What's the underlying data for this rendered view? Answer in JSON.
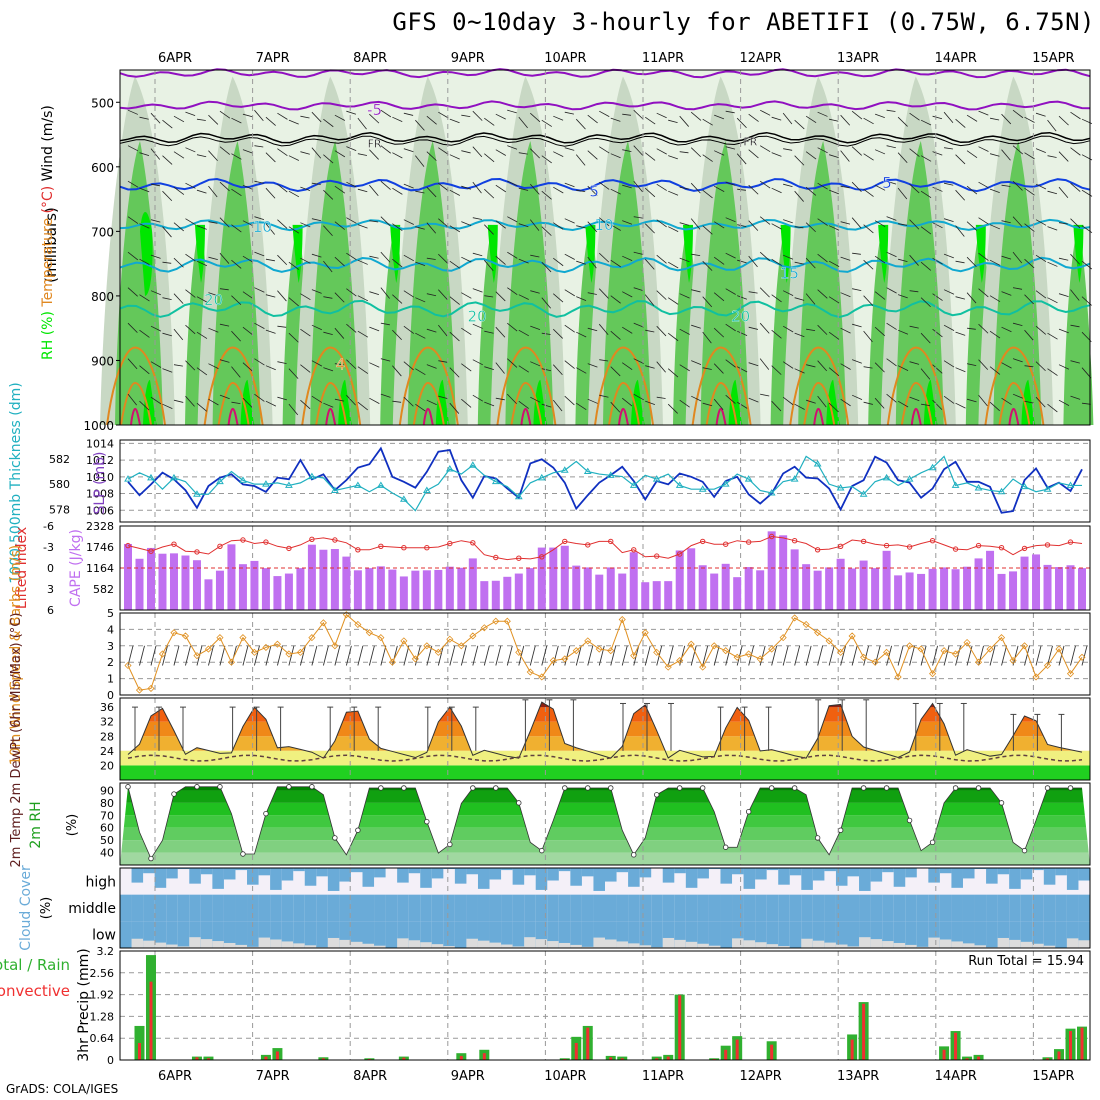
{
  "title": "GFS 0~10day 3-hourly for ABETIFI (0.75W, 6.75N)",
  "credit": "GrADS: COLA/IGES",
  "date_labels": [
    "6APR",
    "7APR",
    "8APR",
    "9APR",
    "10APR",
    "11APR",
    "12APR",
    "13APR",
    "14APR",
    "15APR"
  ],
  "colors": {
    "rh_light": "#e8f2e4",
    "rh_mid": "#c8d8c4",
    "rh_green": "#64c85a",
    "rh_bright": "#00e600",
    "temp_purple": "#9010c0",
    "temp_blue": "#1040e0",
    "temp_cyan": "#10a8d0",
    "temp_teal": "#10c0a0",
    "temp_orange": "#e08820",
    "slp": "#1030c0",
    "thick": "#20b0c0",
    "cape": "#c070f0",
    "li": "#e03030",
    "wind10": "#e09020",
    "rain_total": "#30b030",
    "rain_conv": "#f03030",
    "cloud": "#6aabd8"
  },
  "chart_data": [
    {
      "type": "heatmap",
      "name": "upper-air",
      "ylabel_wind": "Wind (m/s)",
      "ylabel_temp": "Temperature (°C)",
      "ylabel_rh": "RH (%)",
      "ylabel_pres": "(millibars)",
      "y_ticks": [
        500,
        600,
        700,
        800,
        900,
        1000
      ],
      "ylim": [
        1000,
        450
      ],
      "contour_labels": [
        {
          "text": "-5",
          "day": 2.25,
          "p": 512
        },
        {
          "text": "FR",
          "day": 2.25,
          "p": 562
        },
        {
          "text": "FR",
          "day": 6.1,
          "p": 559
        },
        {
          "text": "5",
          "day": 4.5,
          "p": 638
        },
        {
          "text": "5",
          "day": 7.5,
          "p": 625
        },
        {
          "text": "10",
          "day": 1.1,
          "p": 693
        },
        {
          "text": "10",
          "day": 4.6,
          "p": 690
        },
        {
          "text": "15",
          "day": 6.5,
          "p": 765
        },
        {
          "text": "20",
          "day": 0.6,
          "p": 806
        },
        {
          "text": "20",
          "day": 3.3,
          "p": 832
        },
        {
          "text": "20",
          "day": 6.0,
          "p": 832
        },
        {
          "text": "4",
          "day": 1.9,
          "p": 906
        }
      ]
    },
    {
      "type": "line",
      "name": "slp-thickness",
      "ylabel_left": "1000-500mb Thickness (dm)",
      "ylabel_right": "SLP (mb)",
      "left_ticks": [
        578,
        580,
        582
      ],
      "right_ticks": [
        1006,
        1008,
        1010,
        1012,
        1014
      ],
      "ylim_slp": [
        1004.6,
        1014.4
      ],
      "slp": [
        1009.4,
        1007.8,
        1009.1,
        1010.5,
        1009.7,
        1008.4,
        1006.3,
        1008.9,
        1009.9,
        1010.3,
        1009.1,
        1008.9,
        1008.2,
        1009.9,
        1009.7,
        1012.0,
        1009.7,
        1010.3,
        1008.4,
        1009.6,
        1011.1,
        1011.5,
        1013.4,
        1010.0,
        1009.4,
        1008.7,
        1010.6,
        1013.0,
        1013.2,
        1009.6,
        1007.5,
        1010.1,
        1009.8,
        1008.6,
        1007.5,
        1011.6,
        1012.1,
        1011.1,
        1009.3,
        1006.2,
        1007.8,
        1009.3,
        1010.2,
        1011.2,
        1009.5,
        1007.3,
        1009.5,
        1009.1,
        1010.4,
        1010.0,
        1009.4,
        1007.6,
        1009.5,
        1010.0,
        1007.9,
        1006.8,
        1008.0,
        1010.4,
        1011.2,
        1009.9,
        1009.8,
        1008.6,
        1006.1,
        1008.9,
        1009.6,
        1012.4,
        1011.7,
        1009.6,
        1009.3,
        1007.5,
        1008.6,
        1010.9,
        1011.8,
        1009.4,
        1009.4,
        1008.8,
        1005.7,
        1005.9,
        1009.6,
        1011.0,
        1008.7,
        1009.3,
        1008.3,
        1010.9
      ],
      "thickness": [
        580.4,
        580.9,
        580.5,
        579.6,
        580.5,
        580.2,
        579.2,
        579.2,
        580.2,
        581.0,
        580.3,
        580.0,
        580.0,
        580.1,
        579.9,
        580.1,
        580.6,
        580.5,
        579.5,
        579.7,
        579.9,
        579.4,
        579.9,
        579.3,
        578.8,
        577.9,
        579.5,
        580.0,
        581.2,
        580.8,
        581.5,
        580.7,
        580.2,
        579.8,
        579.0,
        580.1,
        580.5,
        580.9,
        581.1,
        581.8,
        581.0,
        580.8,
        580.7,
        580.6,
        579.9,
        580.7,
        580.4,
        580.8,
        579.9,
        579.6,
        579.6,
        579.6,
        580.0,
        580.8,
        580.4,
        579.5,
        579.3,
        580.2,
        580.4,
        582.2,
        581.6,
        580.0,
        579.7,
        579.8,
        579.2,
        580.2,
        580.5,
        579.9,
        580.4,
        580.9,
        581.3,
        582.2,
        579.9,
        580.1,
        579.7,
        579.5,
        579.4,
        580.4,
        579.8,
        579.4,
        579.6,
        580.1,
        579.9,
        579.9
      ]
    },
    {
      "type": "bar",
      "name": "cape-li",
      "ylabel_left": "Lifted Index",
      "ylabel_right": "CAPE (J/kg)",
      "li_ticks": [
        -6,
        -3,
        0,
        3,
        6
      ],
      "cape_ticks": [
        582,
        1164,
        1746,
        2328
      ],
      "cape": [
        1830,
        1420,
        1720,
        1560,
        1570,
        1510,
        1380,
        850,
        1090,
        1820,
        1270,
        1360,
        1160,
        940,
        1010,
        1160,
        1810,
        1670,
        1690,
        1480,
        1100,
        1160,
        1210,
        1120,
        930,
        1090,
        1100,
        1110,
        1200,
        1170,
        1430,
        800,
        810,
        920,
        1010,
        1160,
        1730,
        1730,
        1780,
        1230,
        1180,
        980,
        1180,
        1010,
        1600,
        770,
        800,
        800,
        1650,
        1710,
        1240,
        1010,
        1280,
        910,
        1190,
        1100,
        2180,
        2070,
        1680,
        1270,
        1090,
        1180,
        1420,
        1150,
        1370,
        1160,
        1640,
        960,
        1040,
        1000,
        1140,
        1180,
        1130,
        1200,
        1430,
        1640,
        1000,
        1070,
        1480,
        1540,
        1250,
        1190,
        1240,
        1160
      ],
      "li": [
        -3.2,
        -2.8,
        -2.4,
        -3.0,
        -3.4,
        -2.4,
        -2.3,
        -2.0,
        -3.1,
        -3.9,
        -4.0,
        -3.5,
        -3.7,
        -3.1,
        -2.8,
        -3.3,
        -4.1,
        -4.3,
        -4.0,
        -3.6,
        -2.6,
        -2.6,
        -3.1,
        -3.0,
        -2.9,
        -2.9,
        -2.9,
        -3.0,
        -3.5,
        -3.9,
        -3.6,
        -1.9,
        -1.5,
        -1.2,
        -1.4,
        -1.3,
        -1.6,
        -2.6,
        -3.8,
        -3.5,
        -3.3,
        -3.8,
        -3.8,
        -2.2,
        -2.6,
        -1.6,
        -1.7,
        -1.4,
        -2.0,
        -3.2,
        -3.8,
        -3.4,
        -3.4,
        -3.9,
        -3.7,
        -3.8,
        -4.5,
        -4.3,
        -3.9,
        -3.5,
        -2.6,
        -2.7,
        -3.1,
        -4.0,
        -3.8,
        -3.4,
        -3.2,
        -3.3,
        -3.0,
        -3.5,
        -3.9,
        -3.3,
        -2.7,
        -2.6,
        -3.2,
        -3.1,
        -2.9,
        -1.9,
        -2.8,
        -3.2,
        -3.3,
        -3.2,
        -3.7,
        -3.5
      ]
    },
    {
      "type": "line",
      "name": "wind10m",
      "ylabel": "10m Wind Speed & Barbs (m/s)",
      "y_ticks": [
        0,
        1,
        2,
        3,
        4,
        5
      ],
      "ylim": [
        0,
        5
      ],
      "speed": [
        1.8,
        0.3,
        0.4,
        2.5,
        3.8,
        3.6,
        2.4,
        2.8,
        3.5,
        2.0,
        3.5,
        2.6,
        2.9,
        3.1,
        2.5,
        2.6,
        3.5,
        4.4,
        3.0,
        4.9,
        4.3,
        3.8,
        3.5,
        2.0,
        3.3,
        2.2,
        3.0,
        2.6,
        3.4,
        3.0,
        3.6,
        4.1,
        4.5,
        4.5,
        2.6,
        1.4,
        1.1,
        2.1,
        2.2,
        2.7,
        3.3,
        2.8,
        2.7,
        4.6,
        2.4,
        3.8,
        2.6,
        1.7,
        2.1,
        3.1,
        1.7,
        3.0,
        2.7,
        2.3,
        2.5,
        2.2,
        2.8,
        3.5,
        4.7,
        4.3,
        3.8,
        3.3,
        2.6,
        3.6,
        2.3,
        2.0,
        2.6,
        1.1,
        3.0,
        2.8,
        1.3,
        2.7,
        2.5,
        3.2,
        2.0,
        2.8,
        3.5,
        2.1,
        3.0,
        1.1,
        1.8,
        2.8,
        1.3,
        2.3
      ]
    },
    {
      "type": "area",
      "name": "2m-temp",
      "ylabel": "2m Temp 2m DewPt (6hr Min/Max) (°C)",
      "y_ticks": [
        20,
        24,
        28,
        32,
        36
      ],
      "ylim": [
        16,
        38.5
      ],
      "temp_min_day": [
        23,
        23,
        22,
        22,
        22,
        22,
        22,
        22,
        22,
        23
      ],
      "temp_max_day": [
        36,
        36,
        36,
        36,
        38,
        37,
        36,
        38,
        37,
        34
      ],
      "dewpt": 22
    },
    {
      "type": "area",
      "name": "2m-rh",
      "ylabel": "2m RH (%)",
      "y_ticks": [
        40,
        50,
        60,
        70,
        80,
        90
      ],
      "ylim": [
        30,
        96
      ],
      "rh_min_day": [
        35,
        34,
        38,
        38,
        40,
        38,
        40,
        38,
        40,
        40
      ],
      "rh_max_day": [
        93,
        93,
        92,
        92,
        92,
        92,
        92,
        92,
        92,
        92
      ]
    },
    {
      "type": "heatmap",
      "name": "cloud-cover",
      "ylabel": "Cloud Cover (%)",
      "layers": [
        "high",
        "middle",
        "low"
      ]
    },
    {
      "type": "bar",
      "name": "precip",
      "ylabel_a": "Total / Rain",
      "ylabel_b": "Convective",
      "ylabel_c": "3hr Precip (mm)",
      "y_ticks": [
        0,
        0.64,
        1.28,
        1.92,
        2.56,
        3.2
      ],
      "ylim": [
        0,
        3.2
      ],
      "run_total_label": "Run Total = 15.94",
      "total": [
        0,
        1.0,
        3.08,
        0,
        0,
        0,
        0.1,
        0.1,
        0,
        0,
        0,
        0,
        0.15,
        0.35,
        0,
        0,
        0,
        0.08,
        0,
        0,
        0,
        0.05,
        0,
        0,
        0.1,
        0,
        0,
        0.0,
        0,
        0.2,
        0,
        0.3,
        0,
        0,
        0,
        0,
        0,
        0,
        0.05,
        0.68,
        1.0,
        0,
        0.12,
        0.1,
        0,
        0,
        0.1,
        0.15,
        1.92,
        0,
        0,
        0.05,
        0.42,
        0.7,
        0,
        0,
        0.55,
        0,
        0,
        0,
        0,
        0,
        0,
        0.75,
        1.7,
        0,
        0,
        0,
        0,
        0,
        0,
        0.4,
        0.85,
        0.1,
        0.15,
        0,
        0,
        0,
        0,
        0,
        0.08,
        0.32,
        0.92,
        0.98
      ],
      "conv": [
        0,
        0.5,
        2.3,
        0,
        0,
        0,
        0.08,
        0.05,
        0,
        0,
        0,
        0,
        0.1,
        0.25,
        0,
        0,
        0,
        0.05,
        0,
        0,
        0,
        0.03,
        0,
        0,
        0.07,
        0,
        0,
        0.0,
        0,
        0.12,
        0,
        0.2,
        0,
        0,
        0,
        0,
        0,
        0,
        0.03,
        0.5,
        0.95,
        0,
        0.08,
        0.05,
        0,
        0,
        0.05,
        0.1,
        1.9,
        0,
        0,
        0.03,
        0.3,
        0.6,
        0,
        0,
        0.45,
        0,
        0,
        0,
        0,
        0,
        0,
        0.6,
        1.65,
        0,
        0,
        0,
        0,
        0,
        0,
        0.3,
        0.8,
        0.05,
        0.1,
        0,
        0,
        0,
        0,
        0,
        0.05,
        0.25,
        0.85,
        0.95
      ]
    }
  ]
}
